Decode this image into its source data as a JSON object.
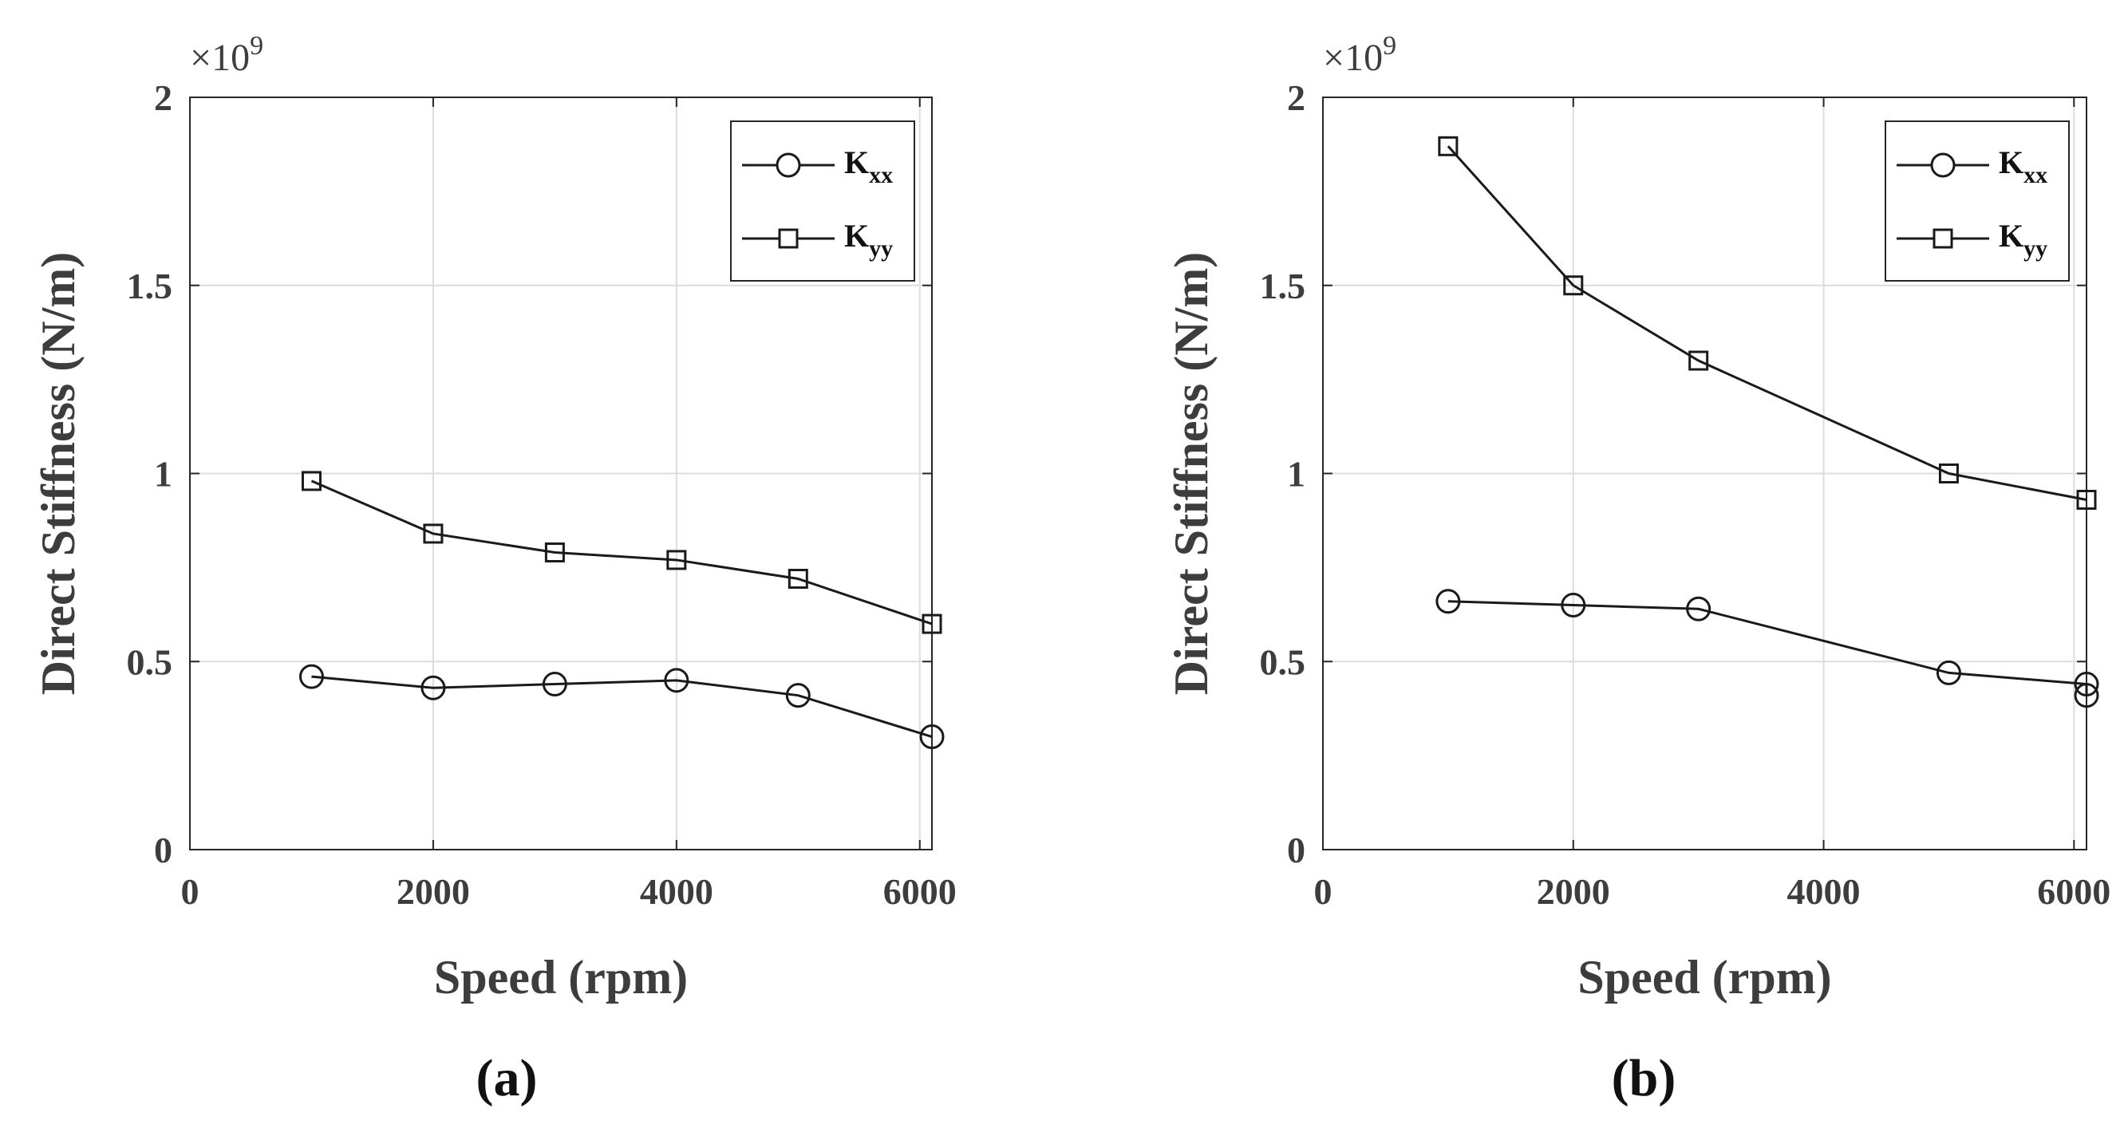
{
  "chart_data": [
    {
      "type": "line",
      "panel_label": "(a)",
      "title": "",
      "xlabel": "Speed (rpm)",
      "ylabel": "Direct Stiffness (N/m)",
      "exponent_label": "×10",
      "exponent_power": "9",
      "xlim": [
        0,
        6100
      ],
      "ylim": [
        0,
        2
      ],
      "xticks": [
        "0",
        "2000",
        "4000",
        "6000"
      ],
      "yticks": [
        "0",
        "0.5",
        "1",
        "1.5",
        "2"
      ],
      "grid": true,
      "legend_position": "top-right",
      "series": [
        {
          "name": "K",
          "subscript": "xx",
          "marker": "circle",
          "x": [
            1000,
            2000,
            3000,
            4000,
            5000,
            6100
          ],
          "values": [
            0.46,
            0.43,
            0.44,
            0.45,
            0.41,
            0.3
          ]
        },
        {
          "name": "K",
          "subscript": "yy",
          "marker": "square",
          "x": [
            1000,
            2000,
            3000,
            4000,
            5000,
            6100
          ],
          "values": [
            0.98,
            0.84,
            0.79,
            0.77,
            0.72,
            0.6
          ]
        }
      ]
    },
    {
      "type": "line",
      "panel_label": "(b)",
      "title": "",
      "xlabel": "Speed (rpm)",
      "ylabel": "Direct Stiffness (N/m)",
      "exponent_label": "×10",
      "exponent_power": "9",
      "xlim": [
        0,
        6100
      ],
      "ylim": [
        0,
        2
      ],
      "xticks": [
        "0",
        "2000",
        "4000",
        "6000"
      ],
      "yticks": [
        "0",
        "0.5",
        "1",
        "1.5",
        "2"
      ],
      "grid": true,
      "legend_position": "top-right",
      "series": [
        {
          "name": "K",
          "subscript": "xx",
          "marker": "circle",
          "x": [
            1000,
            2000,
            3000,
            5000,
            6100,
            6100
          ],
          "values": [
            0.66,
            0.65,
            0.64,
            0.47,
            0.44,
            0.41
          ]
        },
        {
          "name": "K",
          "subscript": "yy",
          "marker": "square",
          "x": [
            1000,
            2000,
            3000,
            5000,
            6100
          ],
          "values": [
            1.87,
            1.5,
            1.3,
            1.0,
            0.93
          ]
        }
      ]
    }
  ]
}
